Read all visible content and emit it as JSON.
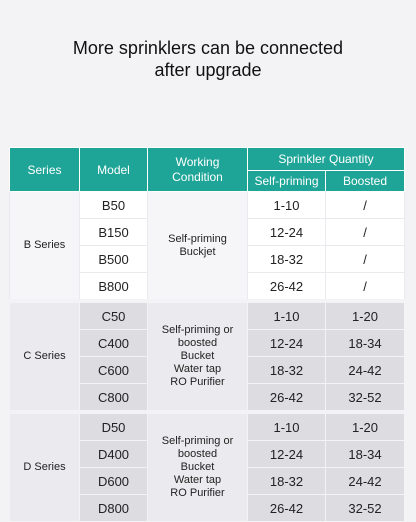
{
  "headline": {
    "line1": "More sprinklers can be connected",
    "line2": "after upgrade"
  },
  "table": {
    "headers": {
      "series": "Series",
      "model": "Model",
      "working_line1": "Working",
      "working_line2": "Condition",
      "quantity": "Sprinkler Quantity",
      "self_priming": "Self-priming",
      "boosted": "Boosted"
    },
    "groups": [
      {
        "series": "B Series",
        "condition": [
          "Self-priming",
          "Buckjet"
        ],
        "rows": [
          {
            "model": "B50",
            "self_priming": "1-10",
            "boosted": "/"
          },
          {
            "model": "B150",
            "self_priming": "12-24",
            "boosted": "/"
          },
          {
            "model": "B500",
            "self_priming": "18-32",
            "boosted": "/"
          },
          {
            "model": "B800",
            "self_priming": "26-42",
            "boosted": "/"
          }
        ]
      },
      {
        "series": "C Series",
        "condition": [
          "Self-priming or",
          "boosted",
          "Bucket",
          "Water tap",
          "RO Purifier"
        ],
        "rows": [
          {
            "model": "C50",
            "self_priming": "1-10",
            "boosted": "1-20"
          },
          {
            "model": "C400",
            "self_priming": "12-24",
            "boosted": "18-34"
          },
          {
            "model": "C600",
            "self_priming": "18-32",
            "boosted": "24-42"
          },
          {
            "model": "C800",
            "self_priming": "26-42",
            "boosted": "32-52"
          }
        ]
      },
      {
        "series": "D Series",
        "condition": [
          "Self-priming or",
          "boosted",
          "Bucket",
          "Water tap",
          "RO Purifier"
        ],
        "rows": [
          {
            "model": "D50",
            "self_priming": "1-10",
            "boosted": "1-20"
          },
          {
            "model": "D400",
            "self_priming": "12-24",
            "boosted": "18-34"
          },
          {
            "model": "D600",
            "self_priming": "18-32",
            "boosted": "24-42"
          },
          {
            "model": "D800",
            "self_priming": "26-42",
            "boosted": "32-52"
          }
        ]
      }
    ]
  }
}
